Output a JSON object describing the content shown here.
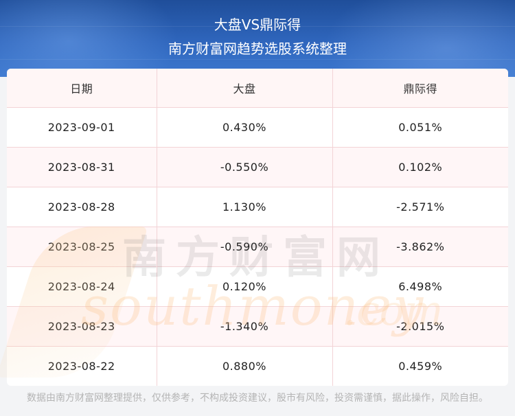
{
  "header": {
    "title": "大盘VS鼎际得",
    "subtitle": "南方财富网趋势选股系统整理"
  },
  "table": {
    "columns": [
      "日期",
      "大盘",
      "鼎际得"
    ],
    "rows": [
      [
        "2023-09-01",
        "0.430%",
        "0.051%"
      ],
      [
        "2023-08-31",
        "-0.550%",
        "0.102%"
      ],
      [
        "2023-08-28",
        "1.130%",
        "-2.571%"
      ],
      [
        "2023-08-25",
        "-0.590%",
        "-3.862%"
      ],
      [
        "2023-08-24",
        "0.120%",
        "6.498%"
      ],
      [
        "2023-08-23",
        "-1.340%",
        "-2.015%"
      ],
      [
        "2023-08-22",
        "0.880%",
        "0.459%"
      ]
    ]
  },
  "watermark": {
    "cn": "南方财富网",
    "en": "southmoney",
    "en_suffix": ".com"
  },
  "footer": {
    "disclaimer": "数据由南方财富网整理提供，仅供参考，不构成投资建议，股市有风险，投资需谨慎，据此操作，风险自担。"
  },
  "colors": {
    "header_bg": "#2f66bd",
    "header_row_bg": "#fff6f6",
    "alt_row_bg": "#fff6f7",
    "grid_line": "#f3d3d6"
  }
}
